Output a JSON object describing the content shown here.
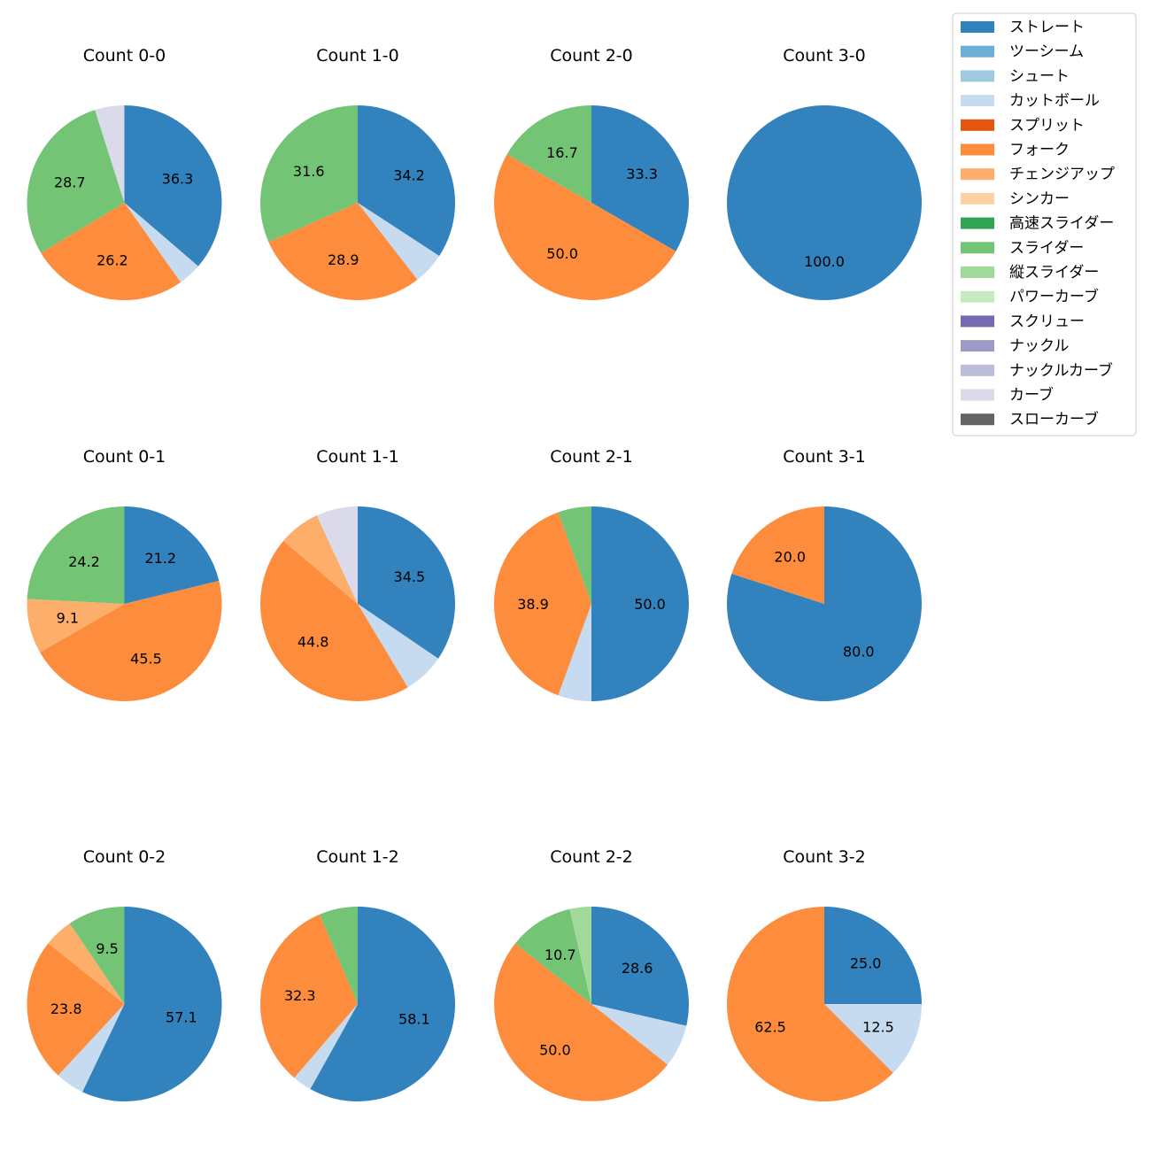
{
  "chart_data": {
    "type": "pie",
    "layout": "grid 3 rows x 4 columns",
    "pitch_types": [
      {
        "name": "ストレート",
        "color": "#3182bd"
      },
      {
        "name": "ツーシーム",
        "color": "#6baed6"
      },
      {
        "name": "シュート",
        "color": "#9ecae1"
      },
      {
        "name": "カットボール",
        "color": "#c6dbef"
      },
      {
        "name": "スプリット",
        "color": "#e6550d"
      },
      {
        "name": "フォーク",
        "color": "#fd8d3c"
      },
      {
        "name": "チェンジアップ",
        "color": "#fdae6b"
      },
      {
        "name": "シンカー",
        "color": "#fdd0a2"
      },
      {
        "name": "高速スライダー",
        "color": "#31a354"
      },
      {
        "name": "スライダー",
        "color": "#74c476"
      },
      {
        "name": "縦スライダー",
        "color": "#a1d99b"
      },
      {
        "name": "パワーカーブ",
        "color": "#c7e9c0"
      },
      {
        "name": "スクリュー",
        "color": "#756bb1"
      },
      {
        "name": "ナックル",
        "color": "#9e9ac8"
      },
      {
        "name": "ナックルカーブ",
        "color": "#bcbddc"
      },
      {
        "name": "カーブ",
        "color": "#dadaeb"
      },
      {
        "name": "スローカーブ",
        "color": "#636363"
      }
    ],
    "charts": [
      {
        "title": "Count 0-0",
        "slices": [
          {
            "type": "ストレート",
            "value": 36.3,
            "label": "36.3"
          },
          {
            "type": "カットボール",
            "value": 3.9,
            "label": ""
          },
          {
            "type": "フォーク",
            "value": 26.2,
            "label": "26.2"
          },
          {
            "type": "スライダー",
            "value": 28.7,
            "label": "28.7"
          },
          {
            "type": "カーブ",
            "value": 4.9,
            "label": ""
          }
        ]
      },
      {
        "title": "Count 1-0",
        "slices": [
          {
            "type": "ストレート",
            "value": 34.2,
            "label": "34.2"
          },
          {
            "type": "カットボール",
            "value": 5.3,
            "label": ""
          },
          {
            "type": "フォーク",
            "value": 28.9,
            "label": "28.9"
          },
          {
            "type": "スライダー",
            "value": 31.6,
            "label": "31.6"
          }
        ]
      },
      {
        "title": "Count 2-0",
        "slices": [
          {
            "type": "ストレート",
            "value": 33.3,
            "label": "33.3"
          },
          {
            "type": "フォーク",
            "value": 50.0,
            "label": "50.0"
          },
          {
            "type": "スライダー",
            "value": 16.7,
            "label": "16.7"
          }
        ]
      },
      {
        "title": "Count 3-0",
        "slices": [
          {
            "type": "ストレート",
            "value": 100.0,
            "label": "100.0"
          }
        ]
      },
      {
        "title": "Count 0-1",
        "slices": [
          {
            "type": "ストレート",
            "value": 21.2,
            "label": "21.2"
          },
          {
            "type": "フォーク",
            "value": 45.5,
            "label": "45.5"
          },
          {
            "type": "チェンジアップ",
            "value": 9.1,
            "label": "9.1"
          },
          {
            "type": "スライダー",
            "value": 24.2,
            "label": "24.2"
          }
        ]
      },
      {
        "title": "Count 1-1",
        "slices": [
          {
            "type": "ストレート",
            "value": 34.5,
            "label": "34.5"
          },
          {
            "type": "カットボール",
            "value": 6.9,
            "label": ""
          },
          {
            "type": "フォーク",
            "value": 44.8,
            "label": "44.8"
          },
          {
            "type": "チェンジアップ",
            "value": 6.9,
            "label": ""
          },
          {
            "type": "カーブ",
            "value": 6.9,
            "label": ""
          }
        ]
      },
      {
        "title": "Count 2-1",
        "slices": [
          {
            "type": "ストレート",
            "value": 50.0,
            "label": "50.0"
          },
          {
            "type": "カットボール",
            "value": 5.55,
            "label": ""
          },
          {
            "type": "フォーク",
            "value": 38.9,
            "label": "38.9"
          },
          {
            "type": "スライダー",
            "value": 5.55,
            "label": ""
          }
        ]
      },
      {
        "title": "Count 3-1",
        "slices": [
          {
            "type": "ストレート",
            "value": 80.0,
            "label": "80.0"
          },
          {
            "type": "フォーク",
            "value": 20.0,
            "label": "20.0"
          }
        ]
      },
      {
        "title": "Count 0-2",
        "slices": [
          {
            "type": "ストレート",
            "value": 57.1,
            "label": "57.1"
          },
          {
            "type": "カットボール",
            "value": 4.8,
            "label": ""
          },
          {
            "type": "フォーク",
            "value": 23.8,
            "label": "23.8"
          },
          {
            "type": "チェンジアップ",
            "value": 4.8,
            "label": ""
          },
          {
            "type": "スライダー",
            "value": 9.5,
            "label": "9.5"
          }
        ]
      },
      {
        "title": "Count 1-2",
        "slices": [
          {
            "type": "ストレート",
            "value": 58.1,
            "label": "58.1"
          },
          {
            "type": "カットボール",
            "value": 3.2,
            "label": ""
          },
          {
            "type": "フォーク",
            "value": 32.3,
            "label": "32.3"
          },
          {
            "type": "スライダー",
            "value": 6.4,
            "label": ""
          }
        ]
      },
      {
        "title": "Count 2-2",
        "slices": [
          {
            "type": "ストレート",
            "value": 28.6,
            "label": "28.6"
          },
          {
            "type": "カットボール",
            "value": 7.1,
            "label": ""
          },
          {
            "type": "フォーク",
            "value": 50.0,
            "label": "50.0"
          },
          {
            "type": "スライダー",
            "value": 10.7,
            "label": "10.7"
          },
          {
            "type": "縦スライダー",
            "value": 3.6,
            "label": ""
          }
        ]
      },
      {
        "title": "Count 3-2",
        "slices": [
          {
            "type": "ストレート",
            "value": 25.0,
            "label": "25.0"
          },
          {
            "type": "カットボール",
            "value": 12.5,
            "label": "12.5"
          },
          {
            "type": "フォーク",
            "value": 62.5,
            "label": "62.5"
          }
        ]
      }
    ]
  }
}
